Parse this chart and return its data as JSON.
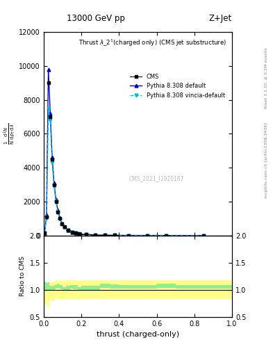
{
  "title_top": "13000 GeV pp",
  "title_right": "Z+Jet",
  "plot_title": "Thrust $\\lambda$_2$^1$(charged only) (CMS jet substructure)",
  "xlabel": "thrust (charged-only)",
  "ylabel_lines": [
    "mathrm d^{2}N",
    "mathrm{d} p_T mathrm{d} lambda"
  ],
  "ylabel_ratio": "Ratio to CMS",
  "right_label_top": "Rivet 3.1.10, ≥ 3.2M events",
  "right_label_bot": "mcplots.cern.ch [arXiv:1306.3436]",
  "watermark": "CMS_2021_I1920187",
  "cms_label": "CMS",
  "pythia_default_label": "Pythia 8.308 default",
  "pythia_vincia_label": "Pythia 8.308 vincia-default",
  "thrust_bins": [
    0.0,
    0.01,
    0.02,
    0.03,
    0.04,
    0.05,
    0.06,
    0.07,
    0.08,
    0.09,
    0.1,
    0.12,
    0.14,
    0.16,
    0.18,
    0.2,
    0.25,
    0.3,
    0.35,
    0.4,
    0.5,
    0.6,
    0.7,
    1.0
  ],
  "cms_values": [
    150,
    1100,
    9000,
    7000,
    4500,
    3000,
    2000,
    1400,
    1000,
    700,
    500,
    300,
    200,
    130,
    90,
    60,
    30,
    15,
    8,
    4,
    2,
    1.5,
    0.5
  ],
  "pythia_default_values": [
    150,
    1200,
    9800,
    7200,
    4600,
    3100,
    2100,
    1500,
    1050,
    730,
    510,
    310,
    210,
    135,
    92,
    62,
    31,
    16,
    8.5,
    4.2,
    2.1,
    1.6,
    0.5
  ],
  "pythia_vincia_values": [
    150,
    1000,
    7500,
    6800,
    4300,
    2900,
    2000,
    1400,
    980,
    690,
    490,
    300,
    200,
    130,
    88,
    60,
    30,
    15,
    8,
    4,
    2,
    1.5,
    0.5
  ],
  "ratio_default_lo": [
    0.98,
    1.0,
    1.0,
    0.98,
    0.99,
    1.0,
    1.02,
    1.03,
    1.02,
    1.01,
    1.0,
    1.0,
    1.02,
    1.01,
    1.0,
    1.0,
    1.0,
    1.03,
    1.02,
    1.02,
    1.02,
    1.03,
    1.02
  ],
  "ratio_default_hi": [
    1.15,
    1.13,
    1.14,
    1.07,
    1.06,
    1.07,
    1.09,
    1.11,
    1.09,
    1.08,
    1.05,
    1.07,
    1.09,
    1.08,
    1.05,
    1.07,
    1.07,
    1.11,
    1.1,
    1.09,
    1.09,
    1.11,
    1.09
  ],
  "ratio_vincia_lo": [
    0.72,
    0.74,
    0.66,
    0.8,
    0.79,
    0.8,
    0.83,
    0.83,
    0.81,
    0.82,
    0.81,
    0.83,
    0.83,
    0.83,
    0.81,
    0.83,
    0.83,
    0.83,
    0.83,
    0.83,
    0.83,
    0.83,
    0.83
  ],
  "ratio_vincia_hi": [
    1.08,
    1.1,
    1.02,
    1.15,
    1.14,
    1.15,
    1.18,
    1.18,
    1.16,
    1.17,
    1.16,
    1.18,
    1.18,
    1.18,
    1.16,
    1.18,
    1.18,
    1.18,
    1.18,
    1.18,
    1.18,
    1.18,
    1.18
  ],
  "cms_color": "black",
  "pythia_default_color": "#0000cc",
  "pythia_vincia_color": "#00bbcc",
  "band_green_color": "#90ee90",
  "band_yellow_color": "#ffff88",
  "ylim_main": [
    0,
    12000
  ],
  "ylim_ratio": [
    0.5,
    2.0
  ],
  "xlim": [
    0.0,
    1.0
  ],
  "yticks_main": [
    0,
    2000,
    4000,
    6000,
    8000,
    10000,
    12000
  ],
  "yticks_ratio": [
    0.5,
    1.0,
    1.5,
    2.0
  ],
  "fig_width": 3.93,
  "fig_height": 5.12,
  "dpi": 100
}
